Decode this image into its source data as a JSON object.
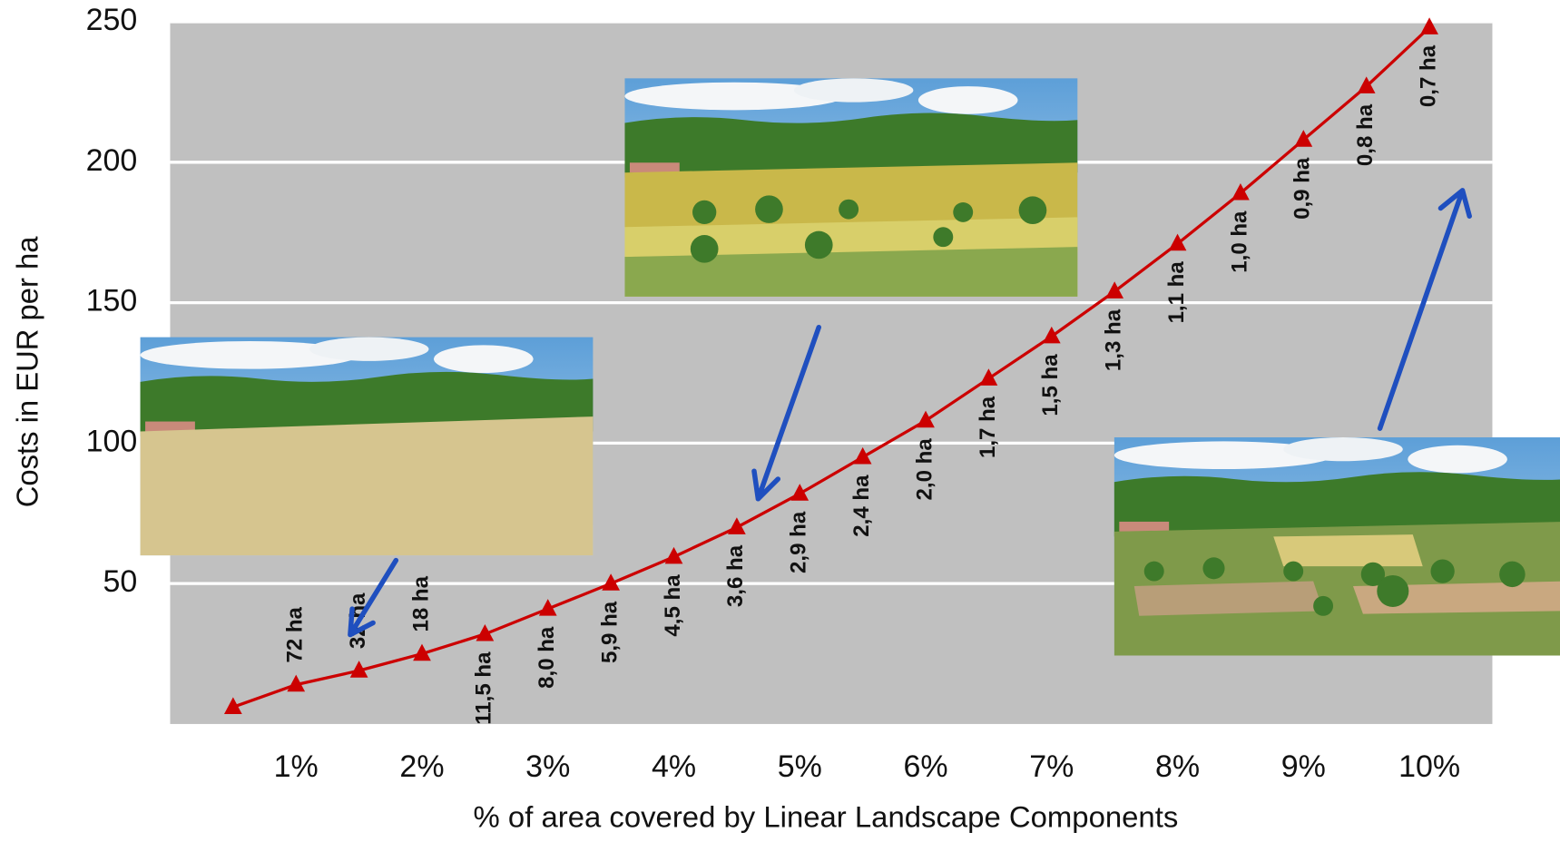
{
  "chart_data": {
    "type": "line",
    "x_label": "% of area covered by Linear Landscape Components",
    "y_label": "Costs in EUR per ha",
    "x": [
      0.5,
      1,
      1.5,
      2,
      2.5,
      3,
      3.5,
      4,
      4.5,
      5,
      5.5,
      6,
      6.5,
      7,
      7.5,
      8,
      8.5,
      9,
      9.5,
      10
    ],
    "series": [
      {
        "color": "#cc0000",
        "values": [
          6,
          14,
          19,
          25,
          32,
          41,
          50,
          59.5,
          70,
          82,
          95,
          108,
          123,
          138,
          154,
          171,
          189,
          208,
          227,
          248
        ],
        "annotations": [
          null,
          "72 ha",
          "32 ha",
          "18 ha",
          "11,5 ha",
          "8,0 ha",
          "5,9 ha",
          "4,5 ha",
          "3,6 ha",
          "2,9 ha",
          "2,4 ha",
          "2,0 ha",
          "1,7 ha",
          "1,5 ha",
          "1,3 ha",
          "1,1 ha",
          "1,0 ha",
          "0,9 ha",
          "0,8 ha",
          "0,7 ha"
        ]
      }
    ],
    "xlim": [
      0,
      10.5
    ],
    "xticks": [
      {
        "value": 1,
        "label": "1%"
      },
      {
        "value": 2,
        "label": "2%"
      },
      {
        "value": 3,
        "label": "3%"
      },
      {
        "value": 4,
        "label": "4%"
      },
      {
        "value": 5,
        "label": "5%"
      },
      {
        "value": 6,
        "label": "6%"
      },
      {
        "value": 7,
        "label": "7%"
      },
      {
        "value": 8,
        "label": "8%"
      },
      {
        "value": 9,
        "label": "9%"
      },
      {
        "value": 10,
        "label": "10%"
      }
    ],
    "ylim": [
      0,
      250
    ],
    "yticks": [
      50,
      100,
      150,
      200,
      250
    ],
    "grid": true,
    "background": "#c0c0c0"
  }
}
